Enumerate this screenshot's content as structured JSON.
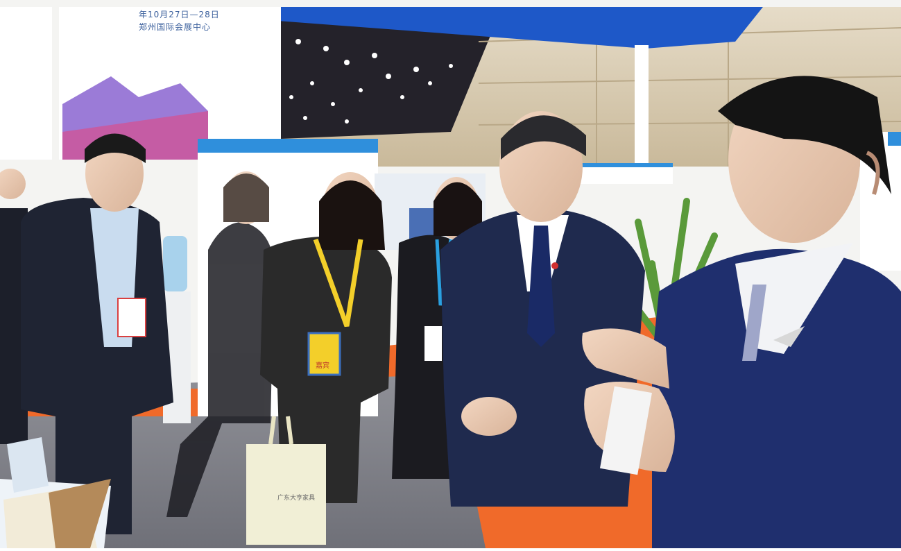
{
  "photo": {
    "scene": "Exhibition hall booth",
    "banner": {
      "line1": "年10月27日—28日",
      "line2": "郑州国际会展中心"
    },
    "badge_text": "嘉宾",
    "bag_text": "广东大亨家具"
  },
  "colors": {
    "ceiling_blue": "#1e58c8",
    "floor_orange": "#f06a2a",
    "suit_navy": "#1f2a4e",
    "lanyard_yellow": "#f3cf2a"
  }
}
